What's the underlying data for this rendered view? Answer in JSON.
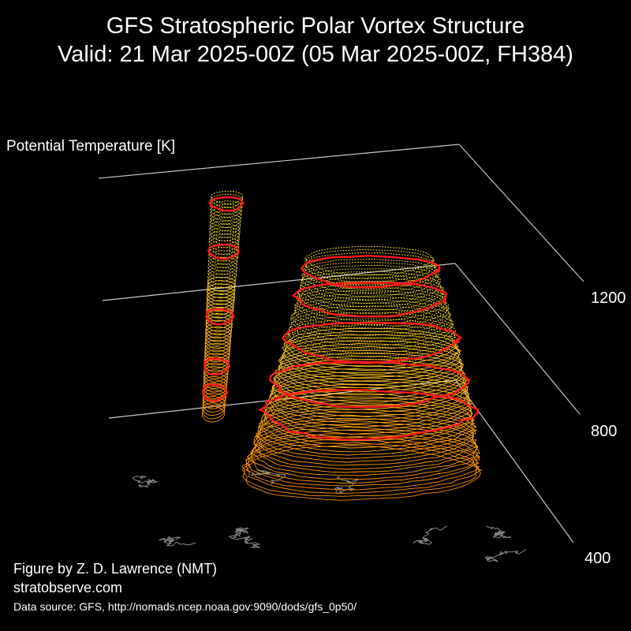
{
  "figure": {
    "title_line1": "GFS Stratospheric Polar Vortex Structure",
    "title_line2": "Valid: 21 Mar 2025-00Z  (05 Mar 2025-00Z, FH384)",
    "credit": "Figure by Z. D. Lawrence (NMT)",
    "website": "stratobserve.com",
    "data_source": "Data source: GFS, http://nomads.ncep.noaa.gov:9090/dods/gfs_0p50/"
  },
  "chart_data": {
    "type": "3d-isosurface",
    "zlabel": "Potential Temperature [K]",
    "zticks": [
      "1200",
      "800",
      "400"
    ],
    "zlim": [
      400,
      1200
    ],
    "grid": true,
    "background": "#000000",
    "colors": {
      "low_levels": "#ff8c00",
      "high_levels": "#ffee33",
      "pv_highlight": "#ff1a1a",
      "coastlines": "#8a8a8a",
      "axes": "#c8c8c8"
    },
    "vortex_lobes": [
      {
        "name": "",
        "theta_range": [
          500,
          1300
        ]
      },
      {
        "name": "",
        "theta_range": [
          400,
          1200
        ]
      }
    ]
  }
}
